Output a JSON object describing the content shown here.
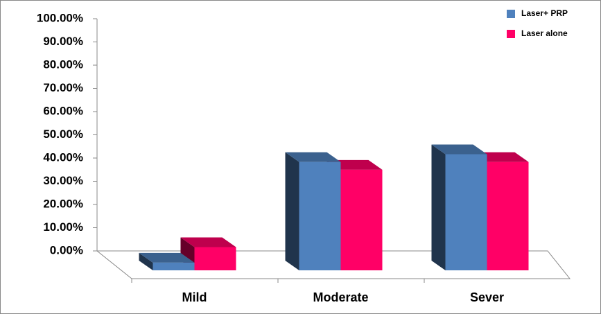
{
  "chart_data": {
    "type": "bar3d",
    "categories": [
      "Mild",
      "Moderate",
      "Sever"
    ],
    "series": [
      {
        "name": "Laser+ PRP",
        "color": "#4f81bd",
        "values": [
          3.33,
          46.67,
          50
        ]
      },
      {
        "name": "Laser alone",
        "color": "#ff0066",
        "values": [
          10,
          43.33,
          46.67
        ]
      }
    ],
    "ylim": [
      0,
      100
    ],
    "yticks": [
      {
        "value": 0,
        "label": "0.00%"
      },
      {
        "value": 10,
        "label": "10.00%"
      },
      {
        "value": 20,
        "label": "20.00%"
      },
      {
        "value": 30,
        "label": "30.00%"
      },
      {
        "value": 40,
        "label": "40.00%"
      },
      {
        "value": 50,
        "label": "50.00%"
      },
      {
        "value": 60,
        "label": "60.00%"
      },
      {
        "value": 70,
        "label": "70.00%"
      },
      {
        "value": 80,
        "label": "80.00%"
      },
      {
        "value": 90,
        "label": "90.00%"
      },
      {
        "value": 100,
        "label": "100.00%"
      }
    ],
    "legend": "top-right"
  }
}
